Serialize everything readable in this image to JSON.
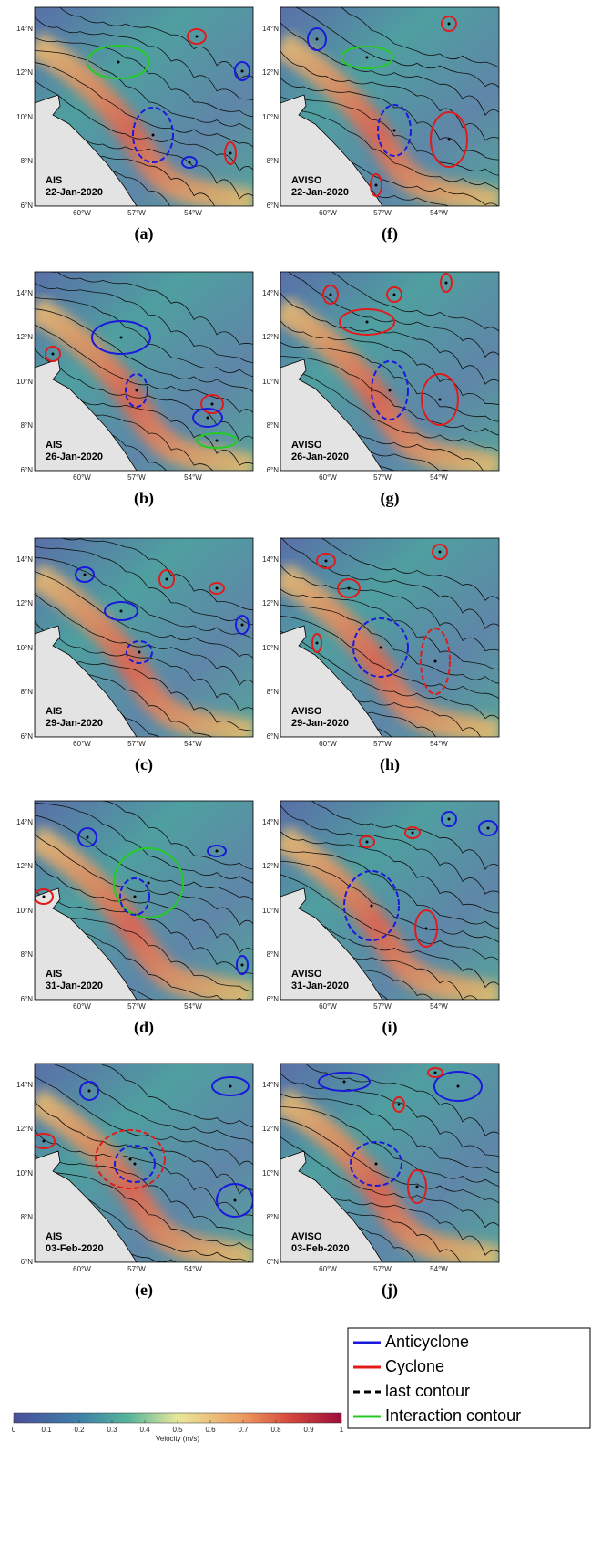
{
  "panels": [
    {
      "source": "AIS",
      "date": "22-Jan-2020",
      "label": "(a)"
    },
    {
      "source": "AIS",
      "date": "26-Jan-2020",
      "label": "(b)"
    },
    {
      "source": "AIS",
      "date": "29-Jan-2020",
      "label": "(c)"
    },
    {
      "source": "AIS",
      "date": "31-Jan-2020",
      "label": "(d)"
    },
    {
      "source": "AIS",
      "date": "03-Feb-2020",
      "label": "(e)"
    },
    {
      "source": "AVISO",
      "date": "22-Jan-2020",
      "label": "(f)"
    },
    {
      "source": "AVISO",
      "date": "26-Jan-2020",
      "label": "(g)"
    },
    {
      "source": "AVISO",
      "date": "29-Jan-2020",
      "label": "(h)"
    },
    {
      "source": "AVISO",
      "date": "31-Jan-2020",
      "label": "(i)"
    },
    {
      "source": "AVISO",
      "date": "03-Feb-2020",
      "label": "(j)"
    }
  ],
  "axes": {
    "lat_labels": [
      "14°N",
      "12°N",
      "10°N",
      "8°N",
      "6°N"
    ],
    "lon_labels": [
      "60°W",
      "57°W",
      "54°W"
    ]
  },
  "legend": [
    {
      "name": "Anticyclone",
      "color": "#1a1adc"
    },
    {
      "name": "Cyclone",
      "color": "#e01b1b"
    },
    {
      "name": "last contour",
      "color": "#000000"
    },
    {
      "name": "Interaction contour",
      "color": "#22cc22"
    }
  ],
  "colorbar": {
    "ticks": [
      0,
      0.1,
      0.2,
      0.3,
      0.4,
      0.5,
      0.6,
      0.7,
      0.8,
      0.9,
      1
    ],
    "label": "Velocity (m/s)"
  }
}
